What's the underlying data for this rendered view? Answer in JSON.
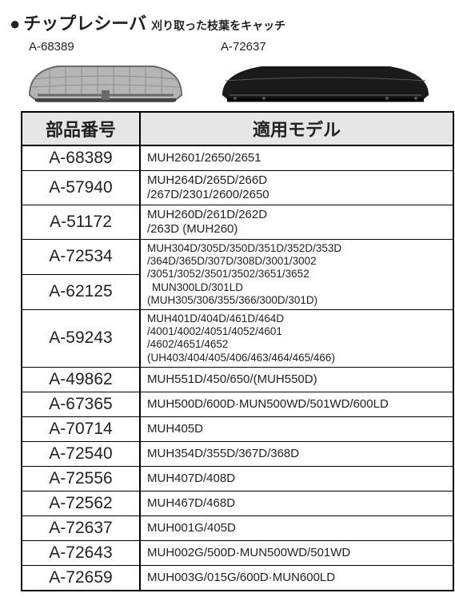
{
  "title": {
    "bullet": "●",
    "main": "チップレシーバ",
    "sub": "刈り取った枝葉をキャッチ"
  },
  "image_labels": {
    "left": "A-68389",
    "right": "A-72637"
  },
  "headers": {
    "pn": "部品番号",
    "models": "適用モデル"
  },
  "rows": [
    {
      "pn": "A-68389",
      "models": "MUH2601/2650/2651"
    },
    {
      "pn": "A-57940",
      "models": "MUH264D/265D/266D\n/267D/2301/2600/2650"
    },
    {
      "pn": "A-51172",
      "models": "MUH260D/261D/262D\n/263D (MUH260)"
    },
    {
      "pn": "A-72534",
      "models": "MUH304D/305D/350D/351D/352D/353D\n/364D/365D/307D/308D/3001/3002\n/3051/3052/3501/3502/3651/3652",
      "merge_down_models": true
    },
    {
      "pn": "A-62125",
      "models": "MUN300LD/301LD\n(MUH305/306/355/366/300D/301D)"
    },
    {
      "pn": "A-59243",
      "models": "MUH401D/404D/461D/464D\n/4001/4002/4051/4052/4601\n/4602/4651/4652\n(UH403/404/405/406/463/464/465/466)"
    },
    {
      "pn": "A-49862",
      "models": "MUH551D/450/650/(MUH550D)"
    },
    {
      "pn": "A-67365",
      "models": "MUH500D/600D·MUN500WD/501WD/600LD"
    },
    {
      "pn": "A-70714",
      "models": "MUH405D"
    },
    {
      "pn": "A-72540",
      "models": "MUH354D/355D/367D/368D"
    },
    {
      "pn": "A-72556",
      "models": "MUH407D/408D"
    },
    {
      "pn": "A-72562",
      "models": "MUH467D/468D"
    },
    {
      "pn": "A-72637",
      "models": "MUH001G/405D"
    },
    {
      "pn": "A-72643",
      "models": "MUH002G/500D·MUN500WD/501WD"
    },
    {
      "pn": "A-72659",
      "models": "MUH003G/015G/600D·MUN600LD"
    }
  ],
  "colors": {
    "header_bg": "#e6e6e6",
    "border": "#000000",
    "text": "#222222",
    "gray_product_fill": "#b5b5b5",
    "gray_product_dark": "#6a6a6a",
    "black_product_fill": "#1a1a1a"
  }
}
